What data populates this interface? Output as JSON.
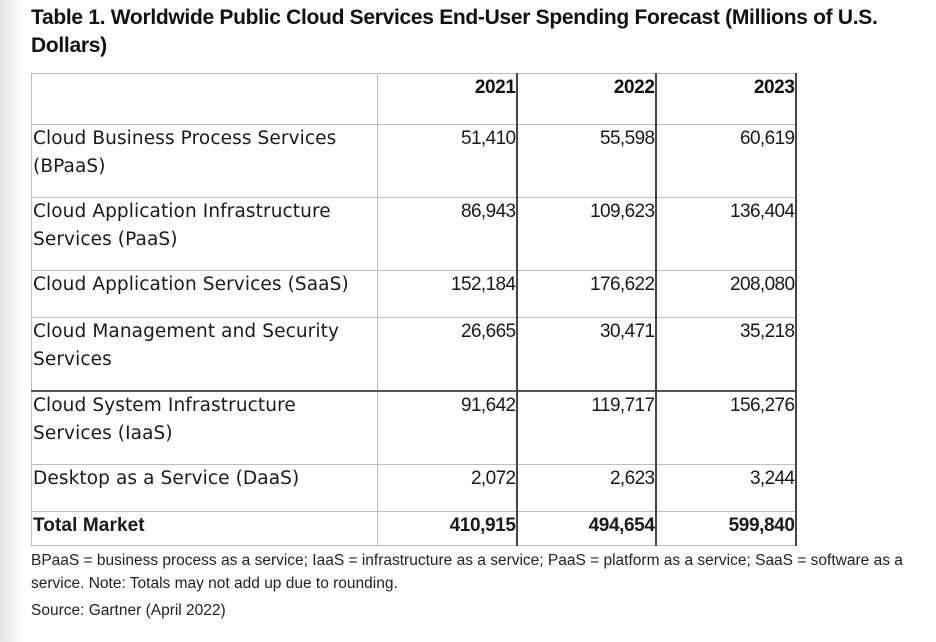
{
  "title": "Table 1. Worldwide Public Cloud Services End-User Spending Forecast (Millions of U.S. Dollars)",
  "table": {
    "columns": [
      "",
      "2021",
      "2022",
      "2023"
    ],
    "rows": [
      {
        "label": "Cloud Business Process Services (BPaaS)",
        "values": [
          "51,410",
          "55,598",
          "60,619"
        ]
      },
      {
        "label": "Cloud Application Infrastructure Services (PaaS)",
        "values": [
          "86,943",
          "109,623",
          "136,404"
        ]
      },
      {
        "label": "Cloud Application Services (SaaS)",
        "values": [
          "152,184",
          "176,622",
          "208,080"
        ]
      },
      {
        "label": "Cloud Management and Security Services",
        "values": [
          "26,665",
          "30,471",
          "35,218"
        ]
      },
      {
        "label": "Cloud System Infrastructure Services (IaaS)",
        "values": [
          "91,642",
          "119,717",
          "156,276"
        ]
      },
      {
        "label": "Desktop as a Service (DaaS)",
        "values": [
          "2,072",
          "2,623",
          "3,244"
        ]
      }
    ],
    "total": {
      "label": "Total Market",
      "values": [
        "410,915",
        "494,654",
        "599,840"
      ]
    }
  },
  "note": "BPaaS = business process as a service; IaaS = infrastructure as a service; PaaS = platform as a service; SaaS = software as a service. Note: Totals may not add up due to rounding.",
  "source": "Source: Gartner (April 2022)"
}
